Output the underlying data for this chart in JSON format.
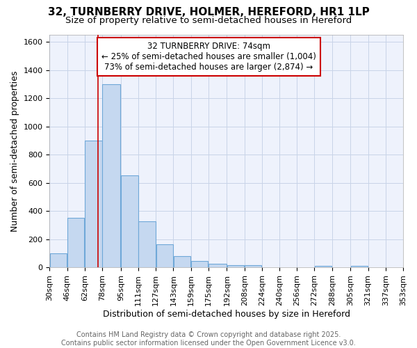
{
  "title_line1": "32, TURNBERRY DRIVE, HOLMER, HEREFORD, HR1 1LP",
  "title_line2": "Size of property relative to semi-detached houses in Hereford",
  "xlabel": "Distribution of semi-detached houses by size in Hereford",
  "ylabel": "Number of semi-detached properties",
  "footer_line1": "Contains HM Land Registry data © Crown copyright and database right 2025.",
  "footer_line2": "Contains public sector information licensed under the Open Government Licence v3.0.",
  "annotation_title": "32 TURNBERRY DRIVE: 74sqm",
  "annotation_line1": "← 25% of semi-detached houses are smaller (1,004)",
  "annotation_line2": "73% of semi-detached houses are larger (2,874) →",
  "property_size": 74,
  "bar_edges": [
    30,
    46,
    62,
    78,
    95,
    111,
    127,
    143,
    159,
    175,
    192,
    208,
    224,
    240,
    256,
    272,
    288,
    305,
    321,
    337,
    353
  ],
  "bar_heights": [
    100,
    350,
    900,
    1300,
    650,
    325,
    165,
    80,
    45,
    25,
    15,
    15,
    0,
    0,
    0,
    10,
    0,
    10,
    0,
    0
  ],
  "bar_color": "#c5d8f0",
  "bar_edgecolor": "#6fa8d8",
  "line_color": "#cc0000",
  "grid_color": "#c8d4e8",
  "background_color": "#ffffff",
  "plot_bg_color": "#eef2fc",
  "ylim": [
    0,
    1650
  ],
  "yticks": [
    0,
    200,
    400,
    600,
    800,
    1000,
    1200,
    1400,
    1600
  ],
  "annotation_box_edgecolor": "#cc0000",
  "title_fontsize": 11,
  "subtitle_fontsize": 9.5,
  "axis_label_fontsize": 9,
  "tick_fontsize": 8,
  "footer_fontsize": 7,
  "annotation_fontsize": 8.5
}
